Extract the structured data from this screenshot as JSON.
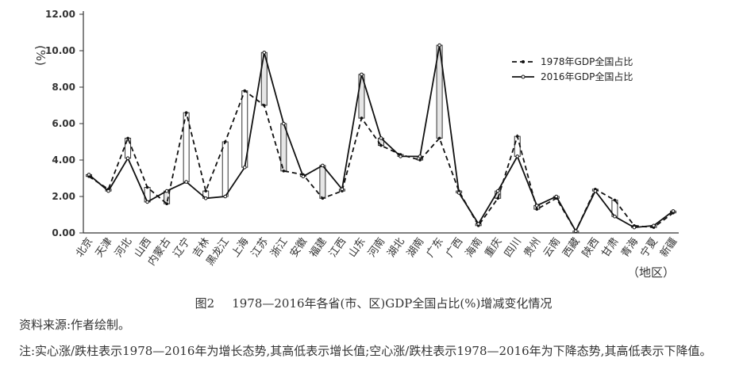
{
  "chart_data": {
    "type": "line",
    "title": "",
    "ylabel": "%",
    "xlabel": "（地区）",
    "ylim": [
      0,
      12
    ],
    "yticks": [
      "0.00",
      "2.00",
      "4.00",
      "6.00",
      "8.00",
      "10.00",
      "12.00"
    ],
    "categories": [
      "北京",
      "天津",
      "河北",
      "山西",
      "内蒙古",
      "辽宁",
      "吉林",
      "黑龙江",
      "上海",
      "江苏",
      "浙江",
      "安徽",
      "福建",
      "江西",
      "山东",
      "河南",
      "湖北",
      "湖南",
      "广东",
      "广西",
      "海南",
      "重庆",
      "四川",
      "贵州",
      "云南",
      "西藏",
      "陕西",
      "甘肃",
      "青海",
      "宁夏",
      "新疆"
    ],
    "series": [
      {
        "name": "1978年GDP全国占比",
        "style": "dashed",
        "values": [
          3.1,
          2.4,
          5.2,
          2.5,
          1.6,
          6.6,
          2.3,
          5.0,
          7.8,
          7.0,
          3.4,
          3.2,
          1.9,
          2.3,
          6.3,
          4.8,
          4.3,
          4.0,
          5.2,
          2.3,
          0.4,
          1.9,
          5.3,
          1.3,
          1.9,
          0.1,
          2.4,
          1.8,
          0.4,
          0.3,
          1.1
        ]
      },
      {
        "name": "2016年GDP全国占比",
        "style": "solid",
        "values": [
          3.2,
          2.3,
          4.1,
          1.7,
          2.3,
          2.8,
          1.9,
          2.0,
          3.6,
          9.9,
          6.0,
          3.1,
          3.7,
          2.4,
          8.7,
          5.2,
          4.2,
          4.2,
          10.3,
          2.2,
          0.5,
          2.3,
          4.2,
          1.5,
          2.0,
          0.1,
          2.3,
          0.9,
          0.3,
          0.4,
          1.2
        ]
      }
    ],
    "legend": "top-right"
  },
  "caption": {
    "figure_no": "图2",
    "text": "1978—2016年各省(市、区)GDP全国占比(%)增减变化情况"
  },
  "source": "资料来源:作者绘制。",
  "note": "注:实心涨/跌柱表示1978—2016年为增长态势,其高低表示增长值;空心涨/跌柱表示1978—2016年为下降态势,其高低表示下降值。"
}
